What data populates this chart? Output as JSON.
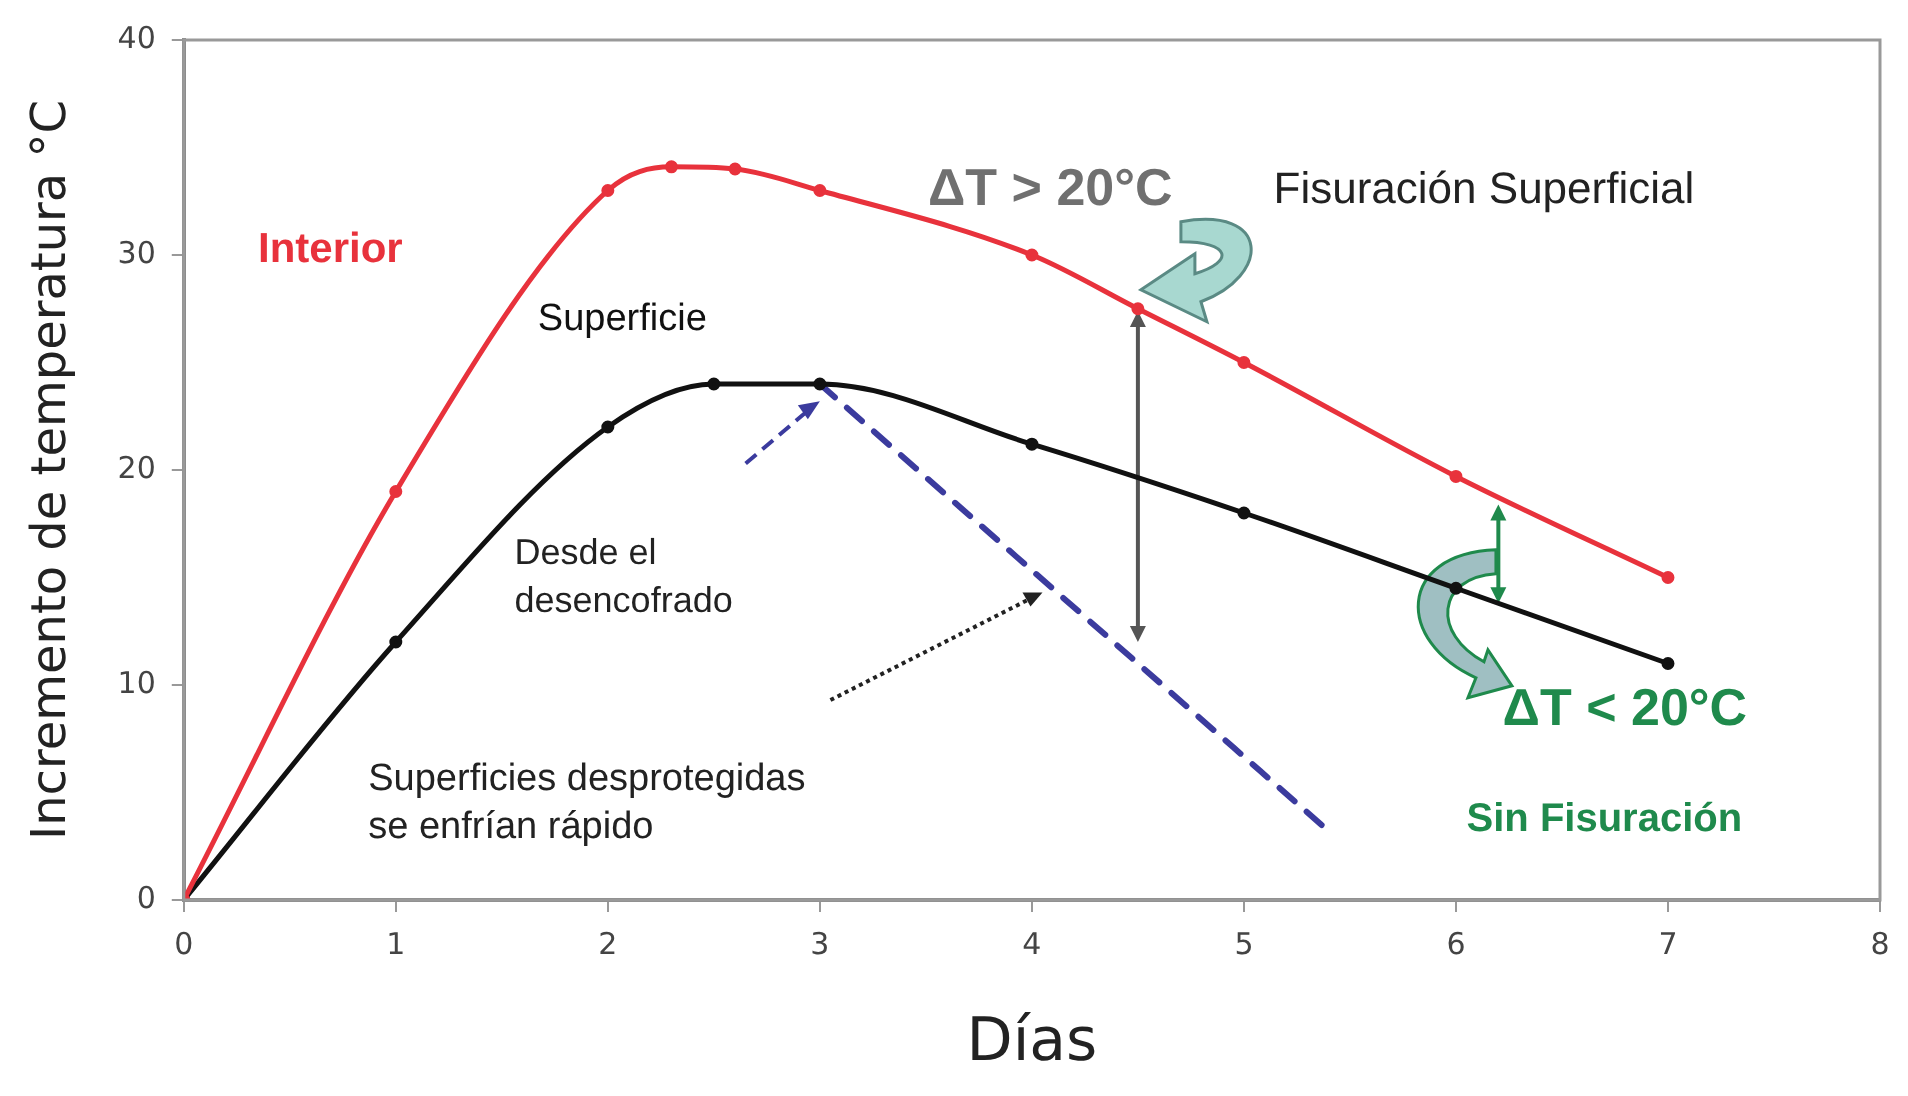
{
  "chart_data": {
    "type": "line",
    "xlabel": "Días",
    "ylabel": "Incremento de temperatura °C",
    "xlim": [
      0,
      8
    ],
    "xticks": [
      0,
      1,
      2,
      3,
      4,
      5,
      6,
      7,
      8
    ],
    "ylim": [
      0,
      40
    ],
    "yticks": [
      0,
      10,
      20,
      30,
      40
    ],
    "grid": false,
    "legend": false,
    "marker": "circle",
    "line_style": "solid",
    "series": [
      {
        "name": "Interior",
        "color": "#e8323c",
        "x": [
          0,
          1,
          2,
          2.3,
          2.6,
          3,
          4,
          4.5,
          5,
          6,
          7
        ],
        "values": [
          0,
          19,
          33,
          34.1,
          34,
          33,
          30,
          27.5,
          25,
          19.7,
          15
        ]
      },
      {
        "name": "Superficie",
        "color": "#111111",
        "x": [
          0,
          1,
          2,
          2.5,
          3,
          4,
          5,
          6,
          7
        ],
        "values": [
          0,
          12,
          22,
          24,
          24,
          21.2,
          18,
          14.5,
          11
        ]
      },
      {
        "color": "#3b3b9e",
        "x": [
          3,
          5.4
        ],
        "values": [
          24,
          3.2
        ],
        "line_style": "dashed",
        "marker": "none"
      }
    ],
    "annotations": [
      "ΔT > 20°C",
      "Fisuración Superficial",
      "ΔT < 20°C",
      "Sin Fisuración",
      "Desde el\ndesencofrado",
      "Superficies desprotegidas\nse enfrían rápido"
    ]
  }
}
